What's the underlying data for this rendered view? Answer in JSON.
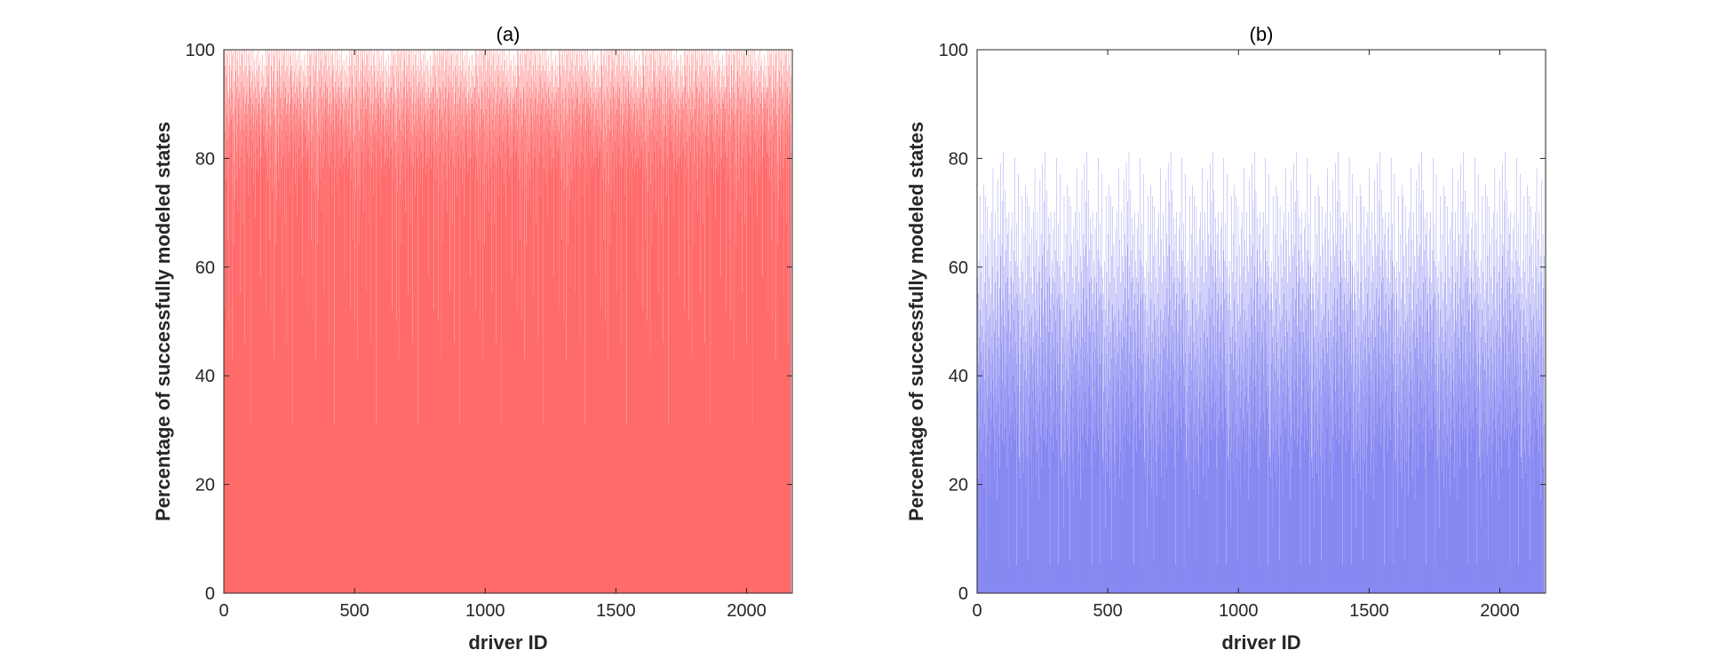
{
  "chart_data": [
    {
      "type": "bar",
      "title": "(a)",
      "xlabel": "driver ID",
      "ylabel": "Percentage of successfully modeled states",
      "xlim": [
        0,
        2175
      ],
      "ylim": [
        0,
        100
      ],
      "xticks": [
        0,
        500,
        1000,
        1500,
        2000
      ],
      "yticks": [
        0,
        20,
        40,
        60,
        80,
        100
      ],
      "grid": false,
      "color": "#ff4040",
      "edge_color": "#d40000",
      "n_drivers": 2170,
      "value_summary": {
        "typical_range": [
          75,
          100
        ],
        "mean": 88,
        "clipped_at": 100
      },
      "series": [
        {
          "values": [
            93,
            100,
            52,
            85,
            97,
            80,
            100,
            90,
            76,
            95,
            88,
            99,
            83,
            65,
            92,
            100,
            78,
            91,
            86,
            50,
            97,
            84,
            100,
            74,
            89,
            93,
            81,
            96,
            100,
            87,
            43,
            92,
            99,
            75,
            88,
            100,
            85,
            64,
            94,
            79,
            91,
            100,
            72,
            89,
            96,
            84,
            100,
            81,
            93,
            76,
            98,
            86,
            100,
            70,
            91,
            83,
            95,
            88,
            100,
            78,
            92,
            85,
            97,
            55,
            89,
            100,
            80,
            94,
            87,
            99,
            82,
            91,
            100,
            68,
            93,
            85,
            96,
            79,
            88,
            100,
            46,
            90,
            84,
            97,
            78,
            92,
            100,
            86,
            81,
            95,
            88,
            99,
            73,
            90,
            84,
            96,
            100,
            80,
            93,
            87,
            97,
            31,
            91,
            85,
            100,
            78,
            94,
            88,
            96,
            83,
            90,
            100,
            75,
            92,
            86,
            98,
            81,
            89,
            95,
            69,
            93,
            85,
            99,
            78,
            91,
            87,
            96,
            82,
            88,
            94,
            100,
            77,
            90,
            84,
            97,
            79,
            92,
            86,
            98,
            80,
            89,
            58,
            93,
            85,
            96,
            80,
            91,
            87,
            99,
            84,
            90,
            95,
            78,
            92,
            86,
            97,
            81,
            89,
            93,
            82
          ]
        }
      ]
    },
    {
      "type": "bar",
      "title": "(b)",
      "xlabel": "driver ID",
      "ylabel": "Percentage of successfully modeled states",
      "xlim": [
        0,
        2175
      ],
      "ylim": [
        0,
        100
      ],
      "xticks": [
        0,
        500,
        1000,
        1500,
        2000
      ],
      "yticks": [
        0,
        20,
        40,
        60,
        80,
        100
      ],
      "grid": false,
      "color": "#6666ee",
      "edge_color": "#0000aa",
      "n_drivers": 2170,
      "value_summary": {
        "typical_range": [
          20,
          60
        ],
        "mean": 40,
        "max": 81
      },
      "series": [
        {
          "values": [
            25,
            58,
            37,
            21,
            55,
            42,
            61,
            30,
            47,
            12,
            52,
            38,
            73,
            26,
            44,
            59,
            33,
            49,
            22,
            66,
            41,
            35,
            54,
            28,
            75,
            46,
            19,
            57,
            39,
            31,
            73,
            48,
            25,
            62,
            43,
            6,
            53,
            36,
            71,
            29,
            50,
            40,
            64,
            24,
            45,
            58,
            34,
            51,
            18,
            67,
            42,
            37,
            55,
            27,
            70,
            47,
            32,
            60,
            39,
            44,
            78,
            30,
            52,
            36,
            65,
            21,
            48,
            41,
            57,
            26,
            70,
            38,
            50,
            33,
            62,
            45,
            17,
            59,
            35,
            53,
            76,
            29,
            47,
            40,
            66,
            23,
            56,
            43,
            62,
            31,
            79,
            37,
            51,
            46,
            64,
            28,
            72,
            39,
            54,
            34,
            81,
            44,
            60,
            27,
            49,
            38,
            74,
            30,
            57,
            42,
            63,
            35,
            69,
            48,
            23,
            58,
            41,
            66,
            5,
            52,
            36,
            70,
            29,
            55,
            44,
            61,
            32,
            48,
            39,
            58,
            26,
            67,
            45,
            53,
            33,
            70,
            40,
            57,
            30,
            50,
            43,
            63,
            28,
            80,
            37,
            54,
            46,
            61,
            34,
            68,
            42,
            5,
            55,
            38,
            60,
            31,
            77,
            44,
            52,
            24
          ]
        }
      ]
    }
  ]
}
